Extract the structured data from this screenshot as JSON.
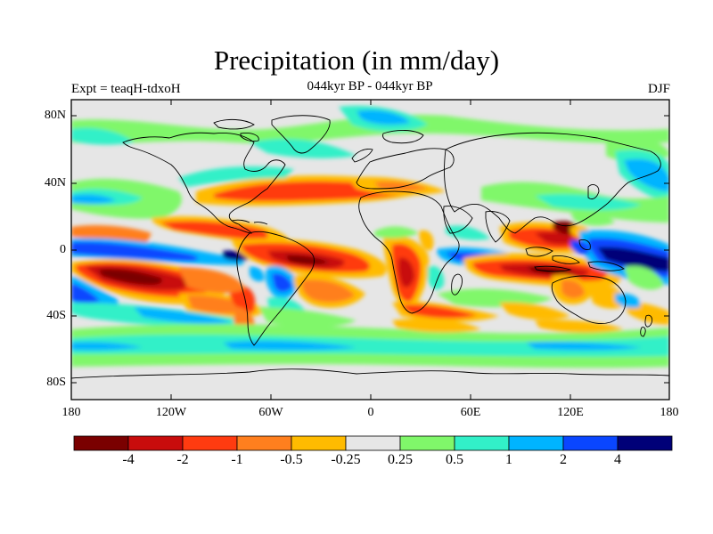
{
  "title": "Precipitation (in mm/day)",
  "subtitle_left": "Expt = teaqH-tdxoH",
  "subtitle_center": "044kyr BP - 044kyr BP",
  "subtitle_right": "DJF",
  "lat_labels": [
    "80N",
    "40N",
    "0",
    "40S",
    "80S"
  ],
  "lon_labels": [
    "180",
    "120W",
    "60W",
    "0",
    "60E",
    "120E",
    "180"
  ],
  "colorbar": {
    "colors": [
      "#7a0000",
      "#c80c0c",
      "#ff3b10",
      "#ff7f1e",
      "#ffbb00",
      "#e6e6e6",
      "#80f76a",
      "#32f0c8",
      "#00b4ff",
      "#0a46ff",
      "#000078"
    ],
    "labels": [
      "-4",
      "-2",
      "-1",
      "-0.5",
      "-0.25",
      "0.25",
      "0.5",
      "1",
      "2",
      "4"
    ]
  }
}
